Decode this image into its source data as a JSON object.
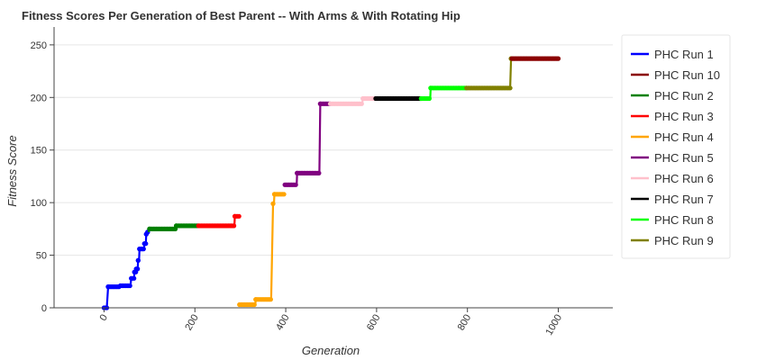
{
  "chart_data": {
    "type": "line",
    "title": "Fitness Scores Per Generation of Best Parent -- With Arms & With Rotating Hip",
    "xlabel": "Generation",
    "ylabel": "Fitness Score",
    "xlim": [
      -110,
      1120
    ],
    "ylim": [
      0,
      267
    ],
    "xticks": [
      0,
      200,
      400,
      600,
      800,
      1000
    ],
    "xtick_labels": [
      "0",
      "200",
      "400",
      "600",
      "800",
      "1000"
    ],
    "yticks": [
      0,
      50,
      100,
      150,
      200,
      250
    ],
    "ytick_labels": [
      "0",
      "50",
      "100",
      "150",
      "200",
      "250"
    ],
    "grid": "horizontal",
    "legend_position": "right",
    "series": [
      {
        "name": "PHC Run 1",
        "color": "#0000ff",
        "points": [
          [
            0,
            0
          ],
          [
            6,
            0
          ],
          [
            9,
            20
          ],
          [
            35,
            20
          ],
          [
            36,
            21
          ],
          [
            58,
            21
          ],
          [
            60,
            28
          ],
          [
            66,
            28
          ],
          [
            67,
            34
          ],
          [
            70,
            34
          ],
          [
            71,
            37
          ],
          [
            74,
            37
          ],
          [
            75,
            45
          ],
          [
            77,
            45
          ],
          [
            78,
            56
          ],
          [
            88,
            56
          ],
          [
            89,
            61
          ],
          [
            92,
            61
          ],
          [
            93,
            70
          ],
          [
            95,
            70
          ],
          [
            96,
            72
          ],
          [
            98,
            72
          ]
        ]
      },
      {
        "name": "PHC Run 2",
        "color": "#008000",
        "points": [
          [
            98,
            72
          ],
          [
            100,
            75
          ],
          [
            158,
            75
          ],
          [
            159,
            78
          ],
          [
            208,
            78
          ]
        ]
      },
      {
        "name": "PHC Run 3",
        "color": "#ff0000",
        "points": [
          [
            208,
            78
          ],
          [
            287,
            78
          ],
          [
            288,
            87
          ],
          [
            298,
            87
          ]
        ]
      },
      {
        "name": "PHC Run 4",
        "color": "#ffa500",
        "points": [
          [
            298,
            3
          ],
          [
            333,
            3
          ],
          [
            334,
            8
          ],
          [
            368,
            8
          ],
          [
            372,
            99
          ],
          [
            374,
            99
          ],
          [
            375,
            108
          ],
          [
            397,
            108
          ]
        ]
      },
      {
        "name": "PHC Run 5",
        "color": "#800080",
        "points": [
          [
            398,
            117
          ],
          [
            424,
            117
          ],
          [
            425,
            128
          ],
          [
            474,
            128
          ],
          [
            476,
            194
          ],
          [
            498,
            194
          ]
        ]
      },
      {
        "name": "PHC Run 6",
        "color": "#ffc0cb",
        "points": [
          [
            498,
            194
          ],
          [
            568,
            194
          ],
          [
            570,
            199
          ],
          [
            598,
            199
          ]
        ]
      },
      {
        "name": "PHC Run 7",
        "color": "#000000",
        "points": [
          [
            598,
            199
          ],
          [
            698,
            199
          ]
        ]
      },
      {
        "name": "PHC Run 8",
        "color": "#00ff00",
        "points": [
          [
            698,
            199
          ],
          [
            718,
            199
          ],
          [
            719,
            209
          ],
          [
            798,
            209
          ]
        ]
      },
      {
        "name": "PHC Run 9",
        "color": "#808000",
        "points": [
          [
            798,
            209
          ],
          [
            894,
            209
          ],
          [
            896,
            237
          ],
          [
            898,
            237
          ]
        ]
      },
      {
        "name": "PHC Run 10",
        "color": "#8b0000",
        "points": [
          [
            898,
            237
          ],
          [
            1000,
            237
          ]
        ]
      }
    ],
    "legend_order": [
      "PHC Run 1",
      "PHC Run 10",
      "PHC Run 2",
      "PHC Run 3",
      "PHC Run 4",
      "PHC Run 5",
      "PHC Run 6",
      "PHC Run 7",
      "PHC Run 8",
      "PHC Run 9"
    ]
  }
}
